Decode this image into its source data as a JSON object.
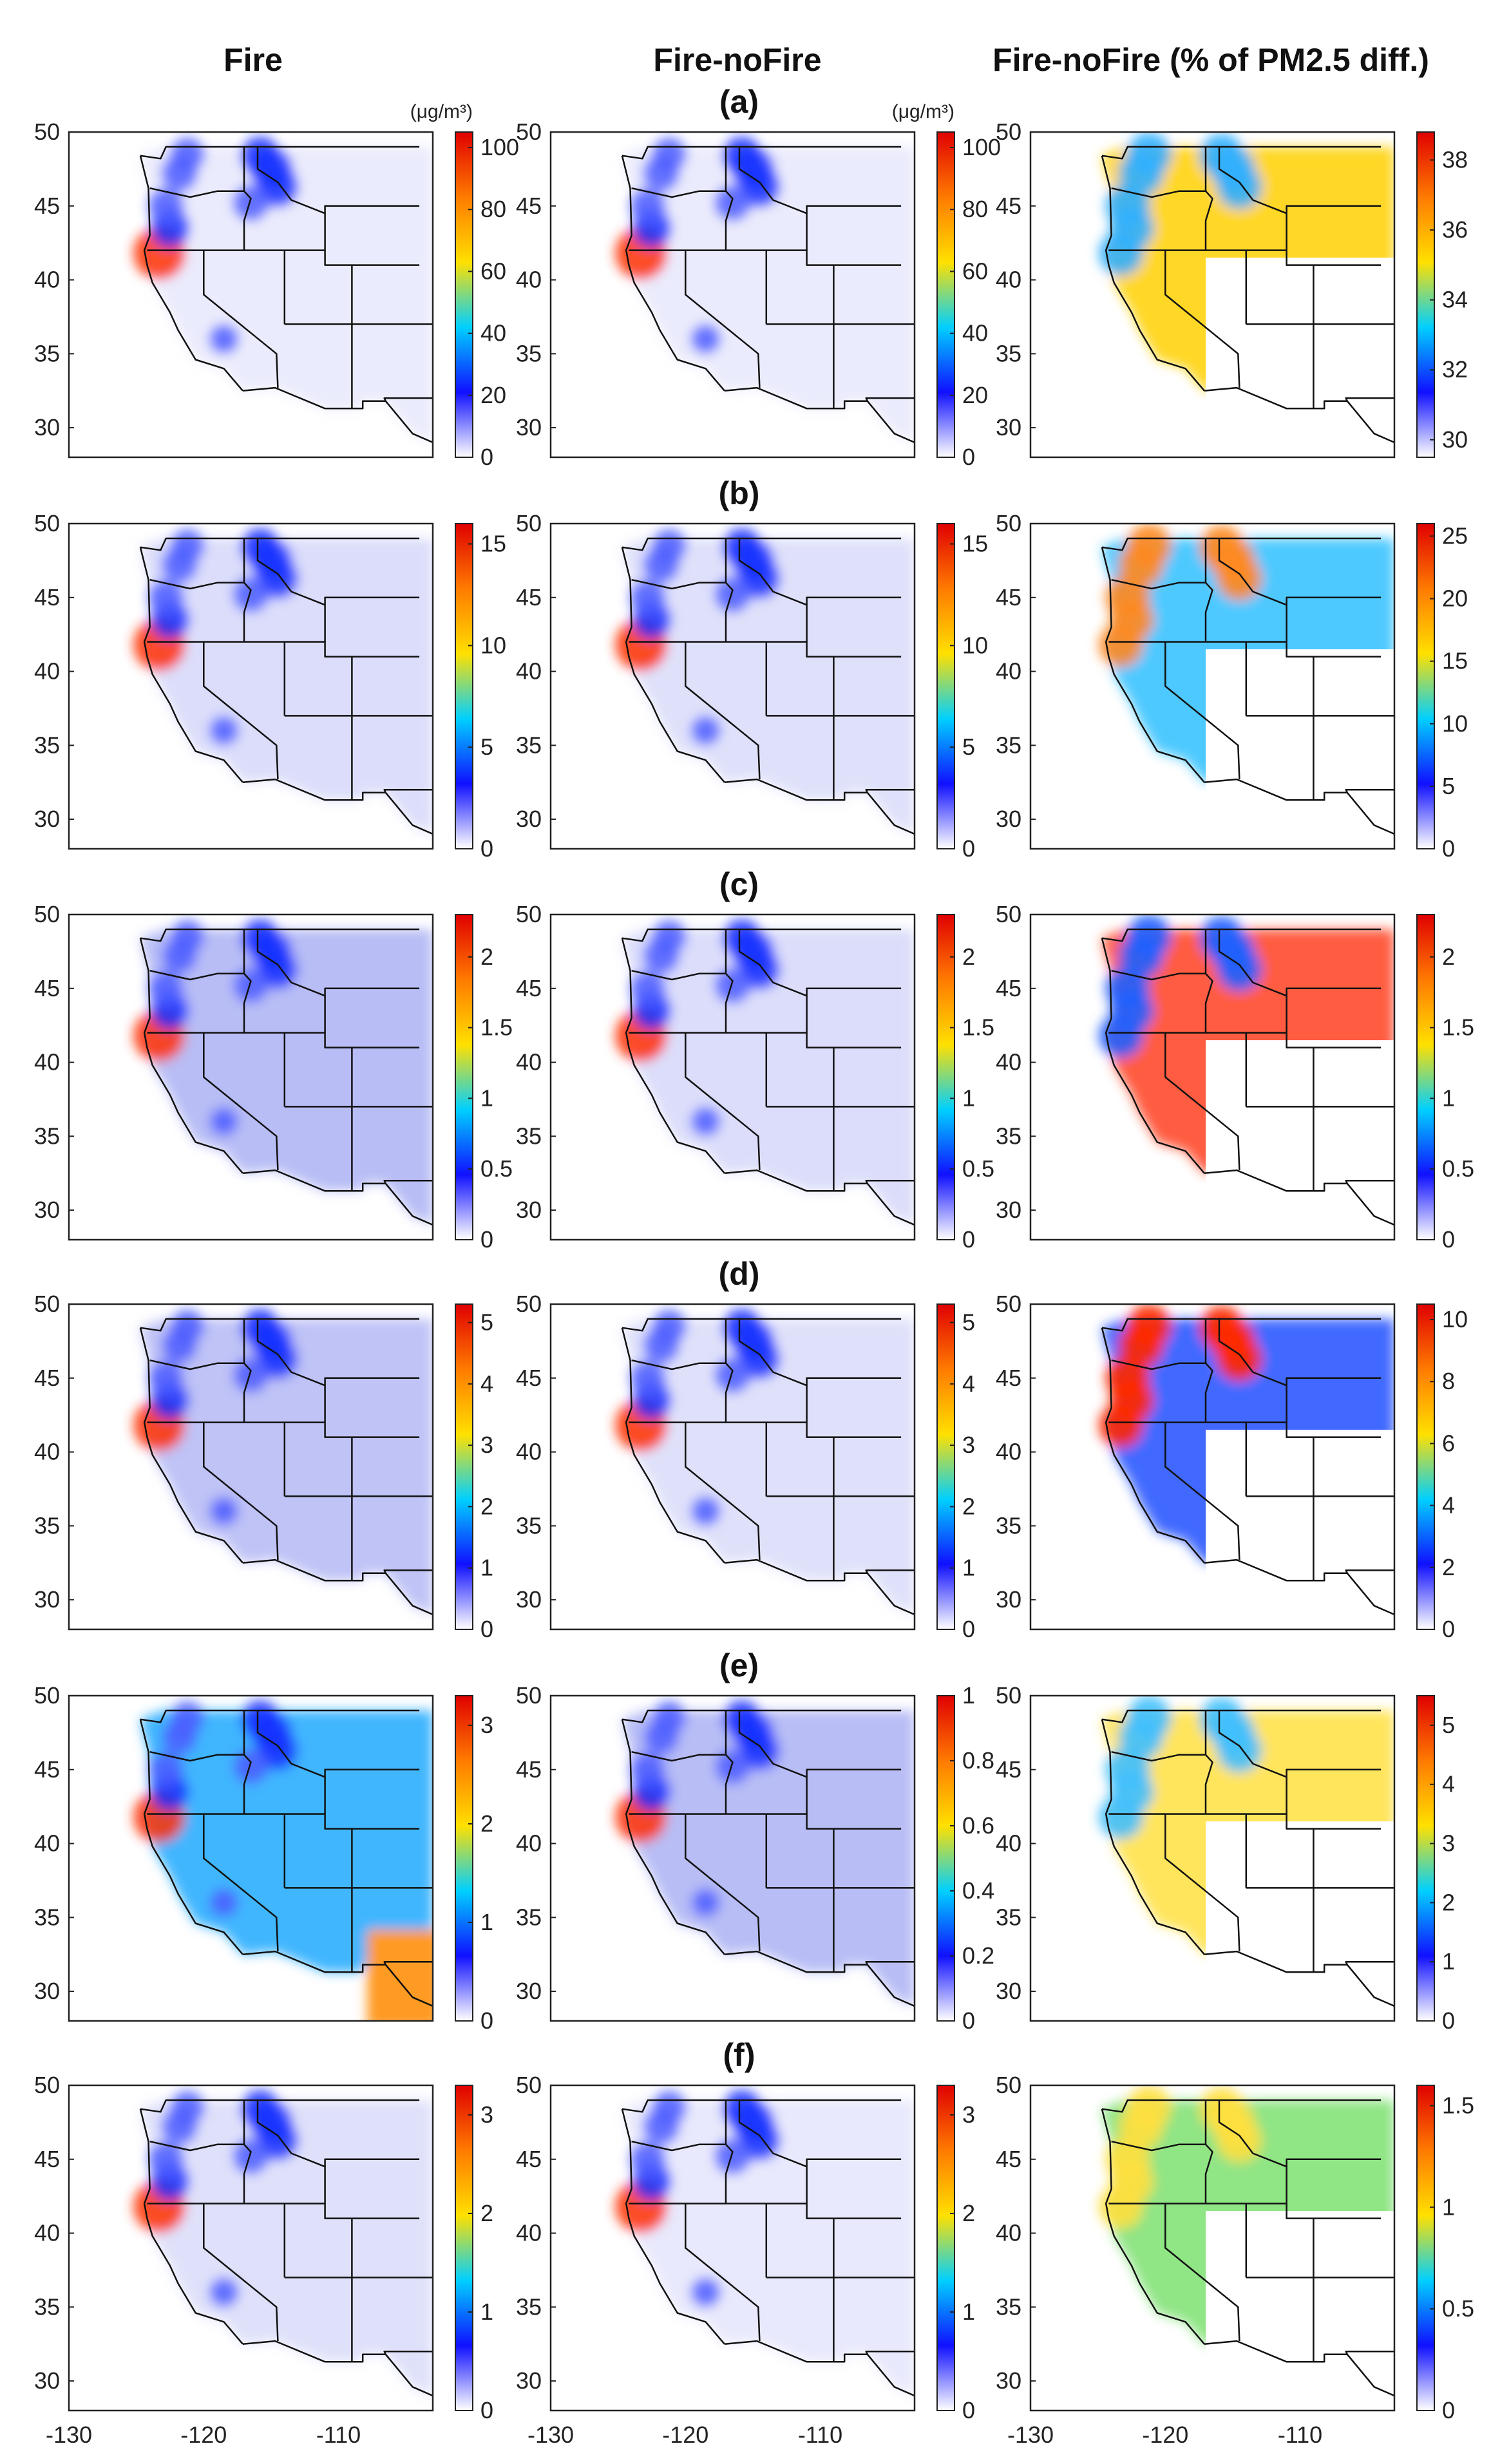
{
  "column_titles": [
    "Fire",
    "Fire-noFire",
    "Fire-noFire (% of PM2.5 diff.)"
  ],
  "units": "(μg/m³)",
  "colors": {
    "colormap": [
      "#ffffff",
      "#1010ff",
      "#00d0ff",
      "#ffe000",
      "#ff7a00",
      "#e00000"
    ],
    "frame": "#222222"
  },
  "chart_data": [
    {
      "type": "heatmap",
      "panel": "a",
      "column": "Fire",
      "title": "(a)",
      "unit_label": "(μg/m³)",
      "xlim": [
        -130,
        -103
      ],
      "ylim": [
        28,
        50
      ],
      "xticks": [
        -130,
        -120,
        -110
      ],
      "yticks": [
        30,
        35,
        40,
        45,
        50
      ],
      "colorbar": {
        "ticks": [
          "0",
          "20",
          "40",
          "60",
          "80",
          "100"
        ],
        "min": 0,
        "max": 105
      }
    },
    {
      "type": "heatmap",
      "panel": "a",
      "column": "Fire-noFire",
      "title": "(a)",
      "unit_label": "(μg/m³)",
      "xlim": [
        -130,
        -103
      ],
      "ylim": [
        28,
        50
      ],
      "xticks": [
        -130,
        -120,
        -110
      ],
      "yticks": [
        30,
        35,
        40,
        45,
        50
      ],
      "colorbar": {
        "ticks": [
          "0",
          "20",
          "40",
          "60",
          "80",
          "100"
        ],
        "min": 0,
        "max": 105
      }
    },
    {
      "type": "heatmap",
      "panel": "a",
      "column": "Fire-noFire (% of PM2.5 diff.)",
      "title": "(a)",
      "xlim": [
        -130,
        -103
      ],
      "ylim": [
        28,
        50
      ],
      "xticks": [
        -130,
        -120,
        -110
      ],
      "yticks": [
        30,
        35,
        40,
        45,
        50
      ],
      "colorbar": {
        "ticks": [
          "30",
          "32",
          "34",
          "36",
          "38"
        ],
        "min": 29.5,
        "max": 38.8
      }
    },
    {
      "type": "heatmap",
      "panel": "b",
      "column": "Fire",
      "title": "(b)",
      "xlim": [
        -130,
        -103
      ],
      "ylim": [
        28,
        50
      ],
      "xticks": [
        -130,
        -120,
        -110
      ],
      "yticks": [
        30,
        35,
        40,
        45,
        50
      ],
      "colorbar": {
        "ticks": [
          "0",
          "5",
          "10",
          "15"
        ],
        "min": 0,
        "max": 16
      }
    },
    {
      "type": "heatmap",
      "panel": "b",
      "column": "Fire-noFire",
      "title": "(b)",
      "xlim": [
        -130,
        -103
      ],
      "ylim": [
        28,
        50
      ],
      "xticks": [
        -130,
        -120,
        -110
      ],
      "yticks": [
        30,
        35,
        40,
        45,
        50
      ],
      "colorbar": {
        "ticks": [
          "0",
          "5",
          "10",
          "15"
        ],
        "min": 0,
        "max": 16
      }
    },
    {
      "type": "heatmap",
      "panel": "b",
      "column": "Fire-noFire (% of PM2.5 diff.)",
      "title": "(b)",
      "xlim": [
        -130,
        -103
      ],
      "ylim": [
        28,
        50
      ],
      "xticks": [
        -130,
        -120,
        -110
      ],
      "yticks": [
        30,
        35,
        40,
        45,
        50
      ],
      "colorbar": {
        "ticks": [
          "0",
          "5",
          "10",
          "15",
          "20",
          "25"
        ],
        "min": 0,
        "max": 26
      }
    },
    {
      "type": "heatmap",
      "panel": "c",
      "column": "Fire",
      "title": "(c)",
      "xlim": [
        -130,
        -103
      ],
      "ylim": [
        28,
        50
      ],
      "xticks": [
        -130,
        -120,
        -110
      ],
      "yticks": [
        30,
        35,
        40,
        45,
        50
      ],
      "colorbar": {
        "ticks": [
          "0",
          "0.5",
          "1",
          "1.5",
          "2"
        ],
        "min": 0,
        "max": 2.3
      }
    },
    {
      "type": "heatmap",
      "panel": "c",
      "column": "Fire-noFire",
      "title": "(c)",
      "xlim": [
        -130,
        -103
      ],
      "ylim": [
        28,
        50
      ],
      "xticks": [
        -130,
        -120,
        -110
      ],
      "yticks": [
        30,
        35,
        40,
        45,
        50
      ],
      "colorbar": {
        "ticks": [
          "0",
          "0.5",
          "1",
          "1.5",
          "2"
        ],
        "min": 0,
        "max": 2.3
      }
    },
    {
      "type": "heatmap",
      "panel": "c",
      "column": "Fire-noFire (% of PM2.5 diff.)",
      "title": "(c)",
      "xlim": [
        -130,
        -103
      ],
      "ylim": [
        28,
        50
      ],
      "xticks": [
        -130,
        -120,
        -110
      ],
      "yticks": [
        30,
        35,
        40,
        45,
        50
      ],
      "colorbar": {
        "ticks": [
          "0",
          "0.5",
          "1",
          "1.5",
          "2"
        ],
        "min": 0,
        "max": 2.3
      }
    },
    {
      "type": "heatmap",
      "panel": "d",
      "column": "Fire",
      "title": "(d)",
      "xlim": [
        -130,
        -103
      ],
      "ylim": [
        28,
        50
      ],
      "xticks": [
        -130,
        -120,
        -110
      ],
      "yticks": [
        30,
        35,
        40,
        45,
        50
      ],
      "colorbar": {
        "ticks": [
          "0",
          "1",
          "2",
          "3",
          "4",
          "5"
        ],
        "min": 0,
        "max": 5.3
      }
    },
    {
      "type": "heatmap",
      "panel": "d",
      "column": "Fire-noFire",
      "title": "(d)",
      "xlim": [
        -130,
        -103
      ],
      "ylim": [
        28,
        50
      ],
      "xticks": [
        -130,
        -120,
        -110
      ],
      "yticks": [
        30,
        35,
        40,
        45,
        50
      ],
      "colorbar": {
        "ticks": [
          "0",
          "1",
          "2",
          "3",
          "4",
          "5"
        ],
        "min": 0,
        "max": 5.3
      }
    },
    {
      "type": "heatmap",
      "panel": "d",
      "column": "Fire-noFire (% of PM2.5 diff.)",
      "title": "(d)",
      "xlim": [
        -130,
        -103
      ],
      "ylim": [
        28,
        50
      ],
      "xticks": [
        -130,
        -120,
        -110
      ],
      "yticks": [
        30,
        35,
        40,
        45,
        50
      ],
      "colorbar": {
        "ticks": [
          "0",
          "2",
          "4",
          "6",
          "8",
          "10"
        ],
        "min": 0,
        "max": 10.5
      }
    },
    {
      "type": "heatmap",
      "panel": "e",
      "column": "Fire",
      "title": "(e)",
      "xlim": [
        -130,
        -103
      ],
      "ylim": [
        28,
        50
      ],
      "xticks": [
        -130,
        -120,
        -110
      ],
      "yticks": [
        30,
        35,
        40,
        45,
        50
      ],
      "colorbar": {
        "ticks": [
          "0",
          "1",
          "2",
          "3"
        ],
        "min": 0,
        "max": 3.3
      }
    },
    {
      "type": "heatmap",
      "panel": "e",
      "column": "Fire-noFire",
      "title": "(e)",
      "xlim": [
        -130,
        -103
      ],
      "ylim": [
        28,
        50
      ],
      "xticks": [
        -130,
        -120,
        -110
      ],
      "yticks": [
        30,
        35,
        40,
        45,
        50
      ],
      "colorbar": {
        "ticks": [
          "0",
          "0.2",
          "0.4",
          "0.6",
          "0.8",
          "1"
        ],
        "min": 0,
        "max": 1
      }
    },
    {
      "type": "heatmap",
      "panel": "e",
      "column": "Fire-noFire (% of PM2.5 diff.)",
      "title": "(e)",
      "xlim": [
        -130,
        -103
      ],
      "ylim": [
        28,
        50
      ],
      "xticks": [
        -130,
        -120,
        -110
      ],
      "yticks": [
        30,
        35,
        40,
        45,
        50
      ],
      "colorbar": {
        "ticks": [
          "0",
          "1",
          "2",
          "3",
          "4",
          "5"
        ],
        "min": 0,
        "max": 5.5
      }
    },
    {
      "type": "heatmap",
      "panel": "f",
      "column": "Fire",
      "title": "(f)",
      "xlim": [
        -130,
        -103
      ],
      "ylim": [
        28,
        50
      ],
      "xticks": [
        -130,
        -120,
        -110
      ],
      "yticks": [
        30,
        35,
        40,
        45,
        50
      ],
      "colorbar": {
        "ticks": [
          "0",
          "1",
          "2",
          "3"
        ],
        "min": 0,
        "max": 3.3
      }
    },
    {
      "type": "heatmap",
      "panel": "f",
      "column": "Fire-noFire",
      "title": "(f)",
      "xlim": [
        -130,
        -103
      ],
      "ylim": [
        28,
        50
      ],
      "xticks": [
        -130,
        -120,
        -110
      ],
      "yticks": [
        30,
        35,
        40,
        45,
        50
      ],
      "colorbar": {
        "ticks": [
          "0",
          "1",
          "2",
          "3"
        ],
        "min": 0,
        "max": 3.3
      }
    },
    {
      "type": "heatmap",
      "panel": "f",
      "column": "Fire-noFire (% of PM2.5 diff.)",
      "title": "(f)",
      "xlim": [
        -130,
        -103
      ],
      "ylim": [
        28,
        50
      ],
      "xticks": [
        -130,
        -120,
        -110
      ],
      "yticks": [
        30,
        35,
        40,
        45,
        50
      ],
      "colorbar": {
        "ticks": [
          "0",
          "0.5",
          "1",
          "1.5"
        ],
        "min": 0,
        "max": 1.6
      }
    }
  ]
}
